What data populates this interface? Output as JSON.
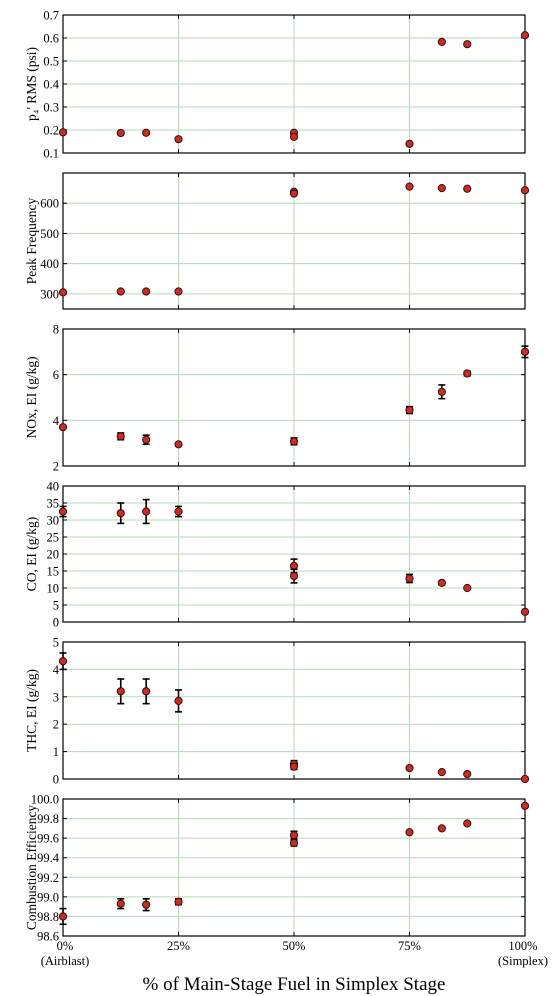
{
  "figure": {
    "xlabel": "% of Main-Stage Fuel in Simplex Stage",
    "x_ticks": [
      {
        "value": 0,
        "label": "0%",
        "sublabel": "(Airblast)"
      },
      {
        "value": 25,
        "label": "25%",
        "sublabel": ""
      },
      {
        "value": 50,
        "label": "50%",
        "sublabel": ""
      },
      {
        "value": 75,
        "label": "75%",
        "sublabel": ""
      },
      {
        "value": 100,
        "label": "100%",
        "sublabel": "(Simplex)"
      }
    ],
    "xlim": [
      0,
      100
    ],
    "grid_color": "#b3dcb3",
    "marker_color": "#e2231a",
    "marker_edge": "#1a1a1a"
  },
  "chart_data": [
    {
      "type": "scatter",
      "ylabel": "p₄' RMS (psi)",
      "ylim": [
        0.1,
        0.7
      ],
      "yticks": [
        "0.1",
        "0.2",
        "0.3",
        "0.4",
        "0.5",
        "0.6",
        "0.7"
      ],
      "grid": true,
      "points": [
        {
          "x": 0,
          "y": 0.19
        },
        {
          "x": 12.5,
          "y": 0.187
        },
        {
          "x": 18,
          "y": 0.188
        },
        {
          "x": 25,
          "y": 0.16
        },
        {
          "x": 50,
          "y": 0.188
        },
        {
          "x": 50,
          "y": 0.17
        },
        {
          "x": 75,
          "y": 0.14
        },
        {
          "x": 82,
          "y": 0.583
        },
        {
          "x": 87.5,
          "y": 0.573
        },
        {
          "x": 100,
          "y": 0.612
        }
      ]
    },
    {
      "type": "scatter",
      "ylabel": "Peak Frequency",
      "ylim": [
        250,
        700
      ],
      "yticks": [
        "300",
        "400",
        "500",
        "600"
      ],
      "grid": true,
      "points": [
        {
          "x": 0,
          "y": 305
        },
        {
          "x": 12.5,
          "y": 308
        },
        {
          "x": 18,
          "y": 308
        },
        {
          "x": 25,
          "y": 308
        },
        {
          "x": 50,
          "y": 638
        },
        {
          "x": 50,
          "y": 632
        },
        {
          "x": 75,
          "y": 655
        },
        {
          "x": 82,
          "y": 650
        },
        {
          "x": 87.5,
          "y": 648
        },
        {
          "x": 100,
          "y": 643
        }
      ]
    },
    {
      "type": "scatter",
      "ylabel": "NOx, EI (g/kg)",
      "ylim": [
        2,
        8
      ],
      "yticks": [
        "2",
        "4",
        "6",
        "8"
      ],
      "grid": true,
      "points": [
        {
          "x": 0,
          "y": 3.7,
          "err": 0.0
        },
        {
          "x": 12.5,
          "y": 3.3,
          "err": 0.15
        },
        {
          "x": 18,
          "y": 3.15,
          "err": 0.2
        },
        {
          "x": 25,
          "y": 2.95,
          "err": 0.0
        },
        {
          "x": 50,
          "y": 3.08,
          "err": 0.15
        },
        {
          "x": 75,
          "y": 4.45,
          "err": 0.15
        },
        {
          "x": 82,
          "y": 5.25,
          "err": 0.3
        },
        {
          "x": 87.5,
          "y": 6.05,
          "err": 0.1
        },
        {
          "x": 100,
          "y": 7.0,
          "err": 0.25
        }
      ]
    },
    {
      "type": "scatter",
      "ylabel": "CO, EI (g/kg)",
      "ylim": [
        0,
        40
      ],
      "yticks": [
        "0",
        "5",
        "10",
        "15",
        "20",
        "25",
        "30",
        "35",
        "40"
      ],
      "grid": true,
      "points": [
        {
          "x": 0,
          "y": 32.5,
          "err": 1.5
        },
        {
          "x": 12.5,
          "y": 32.0,
          "err": 3.0
        },
        {
          "x": 18,
          "y": 32.5,
          "err": 3.5
        },
        {
          "x": 25,
          "y": 32.5,
          "err": 1.5
        },
        {
          "x": 50,
          "y": 16.5,
          "err": 2.0
        },
        {
          "x": 50,
          "y": 13.5,
          "err": 2.0
        },
        {
          "x": 75,
          "y": 12.8,
          "err": 1.2
        },
        {
          "x": 82,
          "y": 11.5,
          "err": 0.5
        },
        {
          "x": 87.5,
          "y": 10.0,
          "err": 0.3
        },
        {
          "x": 100,
          "y": 3.0,
          "err": 0.0
        }
      ]
    },
    {
      "type": "scatter",
      "ylabel": "THC, EI (g/kg)",
      "ylim": [
        0,
        5
      ],
      "yticks": [
        "0",
        "1",
        "2",
        "3",
        "4",
        "5"
      ],
      "grid": true,
      "points": [
        {
          "x": 0,
          "y": 4.3,
          "err": 0.3
        },
        {
          "x": 12.5,
          "y": 3.2,
          "err": 0.45
        },
        {
          "x": 18,
          "y": 3.2,
          "err": 0.45
        },
        {
          "x": 25,
          "y": 2.85,
          "err": 0.4
        },
        {
          "x": 50,
          "y": 0.55,
          "err": 0.12
        },
        {
          "x": 50,
          "y": 0.45,
          "err": 0.1
        },
        {
          "x": 75,
          "y": 0.4,
          "err": 0.0
        },
        {
          "x": 82,
          "y": 0.25,
          "err": 0.0
        },
        {
          "x": 87.5,
          "y": 0.18,
          "err": 0.0
        },
        {
          "x": 100,
          "y": 0.0,
          "err": 0.0
        }
      ]
    },
    {
      "type": "scatter",
      "ylabel": "Combustion Efficiency",
      "ylim": [
        98.6,
        100.0
      ],
      "yticks": [
        "98.6",
        "98.8",
        "99.0",
        "99.2",
        "99.4",
        "99.6",
        "99.8",
        "100.0"
      ],
      "grid": true,
      "points": [
        {
          "x": 0,
          "y": 98.8,
          "err": 0.08
        },
        {
          "x": 12.5,
          "y": 98.93,
          "err": 0.05
        },
        {
          "x": 18,
          "y": 98.92,
          "err": 0.06
        },
        {
          "x": 25,
          "y": 98.95,
          "err": 0.03
        },
        {
          "x": 50,
          "y": 99.63,
          "err": 0.04
        },
        {
          "x": 50,
          "y": 99.55,
          "err": 0.03
        },
        {
          "x": 75,
          "y": 99.66,
          "err": 0.0
        },
        {
          "x": 82,
          "y": 99.7,
          "err": 0.0
        },
        {
          "x": 87.5,
          "y": 99.75,
          "err": 0.0
        },
        {
          "x": 100,
          "y": 99.93,
          "err": 0.0
        }
      ]
    }
  ]
}
